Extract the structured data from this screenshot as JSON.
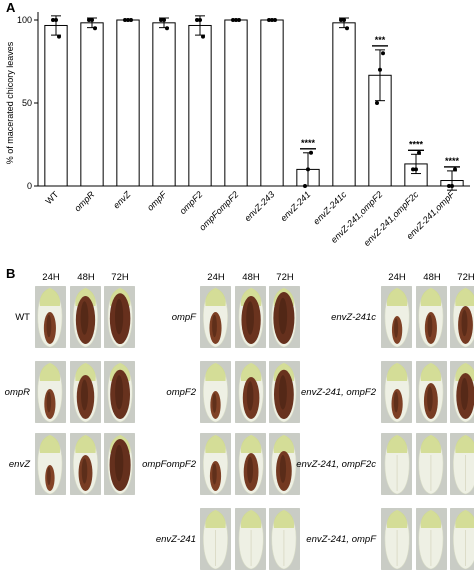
{
  "panel_a": {
    "letter": "A"
  },
  "panel_b": {
    "letter": "B",
    "time_headers": [
      "24H",
      "48H",
      "72H"
    ],
    "groups": [
      {
        "rows": [
          {
            "label": "WT",
            "italic": false,
            "maceration": [
              0.45,
              0.85,
              0.92
            ]
          },
          {
            "label": "ompR",
            "italic": true,
            "maceration": [
              0.4,
              0.75,
              0.88
            ]
          },
          {
            "label": "envZ",
            "italic": true,
            "maceration": [
              0.3,
              0.55,
              0.95
            ]
          }
        ]
      },
      {
        "rows": [
          {
            "label": "ompF",
            "italic": true,
            "maceration": [
              0.45,
              0.85,
              0.95
            ]
          },
          {
            "label": "ompF2",
            "italic": true,
            "maceration": [
              0.35,
              0.7,
              0.88
            ]
          },
          {
            "label": "ompFompF2",
            "italic": true,
            "maceration": [
              0.4,
              0.6,
              0.65
            ]
          },
          {
            "label": "envZ-241",
            "italic": true,
            "maceration": [
              0.0,
              0.0,
              0.0
            ]
          }
        ]
      },
      {
        "rows": [
          {
            "label": "envZ-241c",
            "italic": true,
            "maceration": [
              0.35,
              0.45,
              0.6
            ]
          },
          {
            "label": "envZ-241, ompF2",
            "italic": true,
            "maceration": [
              0.4,
              0.55,
              0.8
            ]
          },
          {
            "label": "envZ-241, ompF2c",
            "italic": true,
            "maceration": [
              0.0,
              0.0,
              0.0
            ]
          },
          {
            "label": "envZ-241, ompF",
            "italic": true,
            "maceration": [
              0.0,
              0.0,
              0.0
            ]
          }
        ]
      }
    ]
  },
  "chart_data": {
    "type": "bar",
    "title": "",
    "xlabel": "",
    "ylabel": "% of macerated chicory leaves",
    "ylim": [
      0,
      100
    ],
    "yticks": [
      0,
      50,
      100
    ],
    "grid": false,
    "categories": [
      "WT",
      "ompR",
      "envZ",
      "ompF",
      "ompF2",
      "ompFompF2",
      "envZ-243",
      "envZ-241",
      "envZ-241c",
      "envZ-241,ompF2",
      "envZ-241,ompF2c",
      "envZ-241,ompF"
    ],
    "values": [
      96.7,
      98.3,
      100,
      98.3,
      96.7,
      100,
      100,
      10,
      98.3,
      66.7,
      13.3,
      3.3
    ],
    "errors": [
      5.8,
      2.9,
      0,
      2.9,
      5.8,
      0,
      0,
      10,
      2.9,
      15.3,
      5.8,
      5.8
    ],
    "points": [
      [
        100,
        100,
        90
      ],
      [
        100,
        100,
        95
      ],
      [
        100,
        100,
        100
      ],
      [
        100,
        100,
        95
      ],
      [
        100,
        100,
        90
      ],
      [
        100,
        100,
        100
      ],
      [
        100,
        100,
        100
      ],
      [
        0,
        10,
        20
      ],
      [
        100,
        100,
        95
      ],
      [
        50,
        70,
        80
      ],
      [
        10,
        10,
        20
      ],
      [
        0,
        0,
        10
      ]
    ],
    "significance": [
      "",
      "",
      "",
      "",
      "",
      "",
      "",
      "****",
      "",
      "***",
      "****",
      "****"
    ]
  }
}
